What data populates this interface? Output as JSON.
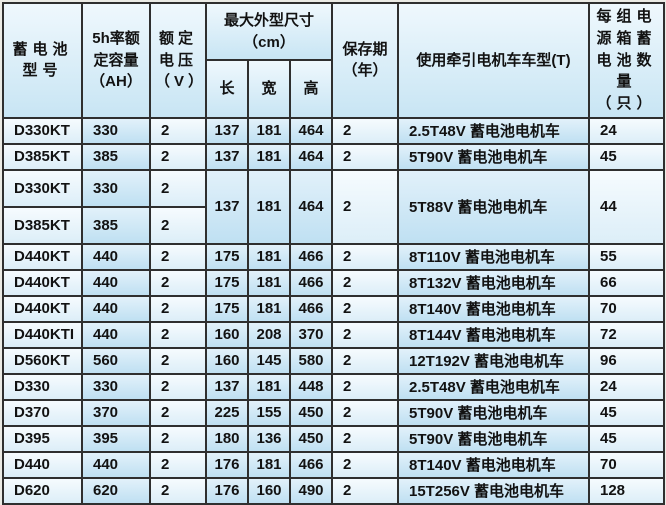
{
  "theme": {
    "border_color": "#2f2f2f",
    "page_background": "#ebebe5",
    "cell_light": "#dceef8",
    "cell_blue": "#bfe0f2",
    "header_blue": "#c8e5f4",
    "text_color": "#121212"
  },
  "table": {
    "dims_group_label": "最大外型尺寸（cm）",
    "columns": [
      {
        "key": "model",
        "label": "蓄电池型号",
        "shade": "light",
        "align": "left"
      },
      {
        "key": "capacity",
        "label": "5h率额定容量（AH）",
        "shade": "blue",
        "align": "left"
      },
      {
        "key": "voltage",
        "label": "额定电压（V）",
        "shade": "light",
        "align": "left"
      },
      {
        "key": "length",
        "label": "长",
        "shade": "blue",
        "align": "center"
      },
      {
        "key": "width",
        "label": "宽",
        "shade": "blue",
        "align": "center"
      },
      {
        "key": "height",
        "label": "高",
        "shade": "blue",
        "align": "center"
      },
      {
        "key": "storage",
        "label": "保存期（年）",
        "shade": "light",
        "align": "left"
      },
      {
        "key": "usage",
        "label": "使用牵引电机车车型(T)",
        "shade": "blue",
        "align": "left"
      },
      {
        "key": "count",
        "label": "每组电源箱蓄电池数量（只）",
        "shade": "light",
        "align": "left"
      }
    ],
    "rows": [
      {
        "cells": {
          "model": "D330KT",
          "capacity": "330",
          "voltage": "2",
          "length": "137",
          "width": "181",
          "height": "464",
          "storage": "2",
          "usage": "2.5T48V 蓄电池电机车",
          "count": "24"
        }
      },
      {
        "cells": {
          "model": "D385KT",
          "capacity": "385",
          "voltage": "2",
          "length": "137",
          "width": "181",
          "height": "464",
          "storage": "2",
          "usage": "5T90V 蓄电池电机车",
          "count": "45"
        }
      },
      {
        "tall": true,
        "cells": {
          "model": "D330KT",
          "capacity": "330",
          "voltage": "2",
          "length": {
            "v": "137",
            "rs": 2
          },
          "width": {
            "v": "181",
            "rs": 2
          },
          "height": {
            "v": "464",
            "rs": 2
          },
          "storage": {
            "v": "2",
            "rs": 2
          },
          "usage": {
            "v": "5T88V 蓄电池电机车",
            "rs": 2
          },
          "count": {
            "v": "44",
            "rs": 2
          }
        }
      },
      {
        "tall": true,
        "cells": {
          "model": "D385KT",
          "capacity": "385",
          "voltage": "2"
        }
      },
      {
        "cells": {
          "model": "D440KT",
          "capacity": "440",
          "voltage": "2",
          "length": "175",
          "width": "181",
          "height": "466",
          "storage": "2",
          "usage": "8T110V 蓄电池电机车",
          "count": "55"
        }
      },
      {
        "cells": {
          "model": "D440KT",
          "capacity": "440",
          "voltage": "2",
          "length": "175",
          "width": "181",
          "height": "466",
          "storage": "2",
          "usage": "8T132V 蓄电池电机车",
          "count": "66"
        }
      },
      {
        "cells": {
          "model": "D440KT",
          "capacity": "440",
          "voltage": "2",
          "length": "175",
          "width": "181",
          "height": "466",
          "storage": "2",
          "usage": "8T140V 蓄电池电机车",
          "count": "70"
        }
      },
      {
        "cells": {
          "model": "D440KTI",
          "capacity": "440",
          "voltage": "2",
          "length": "160",
          "width": "208",
          "height": "370",
          "storage": "2",
          "usage": "8T144V 蓄电池电机车",
          "count": "72"
        }
      },
      {
        "cells": {
          "model": "D560KT",
          "capacity": "560",
          "voltage": "2",
          "length": "160",
          "width": "145",
          "height": "580",
          "storage": "2",
          "usage": "12T192V 蓄电池电机车",
          "count": "96"
        }
      },
      {
        "cells": {
          "model": "D330",
          "capacity": "330",
          "voltage": "2",
          "length": "137",
          "width": "181",
          "height": "448",
          "storage": "2",
          "usage": "2.5T48V 蓄电池电机车",
          "count": "24"
        }
      },
      {
        "cells": {
          "model": "D370",
          "capacity": "370",
          "voltage": "2",
          "length": "225",
          "width": "155",
          "height": "450",
          "storage": "2",
          "usage": "5T90V 蓄电池电机车",
          "count": "45"
        }
      },
      {
        "cells": {
          "model": "D395",
          "capacity": "395",
          "voltage": "2",
          "length": "180",
          "width": "136",
          "height": "450",
          "storage": "2",
          "usage": "5T90V 蓄电池电机车",
          "count": "45"
        }
      },
      {
        "cells": {
          "model": "D440",
          "capacity": "440",
          "voltage": "2",
          "length": "176",
          "width": "181",
          "height": "466",
          "storage": "2",
          "usage": "8T140V 蓄电池电机车",
          "count": "70"
        }
      },
      {
        "cells": {
          "model": "D620",
          "capacity": "620",
          "voltage": "2",
          "length": "176",
          "width": "160",
          "height": "490",
          "storage": "2",
          "usage": "15T256V 蓄电池电机车",
          "count": "128"
        }
      }
    ]
  }
}
